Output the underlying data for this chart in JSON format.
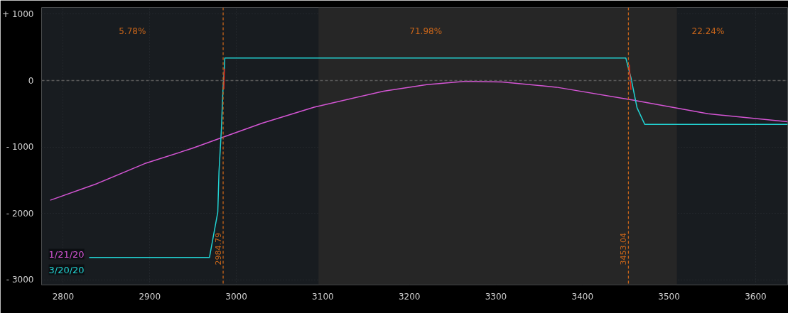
{
  "chart_data": {
    "type": "line",
    "xlim": [
      2775,
      3637
    ],
    "ylim": [
      -3075,
      1100
    ],
    "xticks": [
      2800,
      2900,
      3000,
      3100,
      3200,
      3300,
      3400,
      3500,
      3600
    ],
    "yticks": [
      {
        "value": 1000,
        "label": "+ 1000"
      },
      0,
      {
        "value": -1000,
        "label": "- 1000"
      },
      {
        "value": -2000,
        "label": "- 2000"
      },
      {
        "value": -3000,
        "label": "- 3000"
      }
    ],
    "grid": true,
    "legend": "bottom left",
    "line_style": "solid",
    "marker": "none",
    "series": [
      {
        "name": "1/21/20",
        "color": "#d455d4",
        "x": [
          2785,
          2839,
          2894,
          2949,
          2987,
          3030,
          3090,
          3170,
          3220,
          3265,
          3307,
          3370,
          3457,
          3545,
          3637
        ],
        "values": [
          -1800,
          -1550,
          -1250,
          -1020,
          -840,
          -640,
          -400,
          -160,
          -60,
          -10,
          -20,
          -100,
          -290,
          -500,
          -620
        ]
      },
      {
        "name": "3/20/20",
        "color": "#22d3d3",
        "x": [
          2830,
          2969,
          2978.6,
          2980,
          2982.7,
          2984.6,
          2986.2,
          2986.7,
          3450,
          3456,
          3463,
          3472,
          3637
        ],
        "values": [
          -2660,
          -2660,
          -1980,
          -1370,
          -750,
          -130,
          180,
          340,
          340,
          40,
          -410,
          -660,
          -660
        ]
      },
      {
        "color": "#e8261a",
        "x": [
          2985.6,
          2986.2
        ],
        "values": [
          -130,
          180
        ]
      },
      {
        "color": "#e8261a",
        "x": [
          3454,
          3456
        ],
        "values": [
          240,
          -140
        ]
      }
    ],
    "ref_lines": [
      {
        "axis": "x",
        "value": 2984.79,
        "label": "2984.79",
        "color": "#c8651a",
        "line_style": "dashed"
      },
      {
        "axis": "x",
        "value": 3453.04,
        "label": "3453.04",
        "color": "#c8651a",
        "line_style": "dashed"
      },
      {
        "axis": "y",
        "value": 0,
        "color": "#5a5a5a",
        "line_style": "dashed"
      }
    ],
    "bands": [
      {
        "axis": "x",
        "from": 3095,
        "to": 3509,
        "color": "#262626"
      }
    ],
    "annotations": [
      "5.78%",
      "71.98%",
      "22.24%"
    ]
  }
}
